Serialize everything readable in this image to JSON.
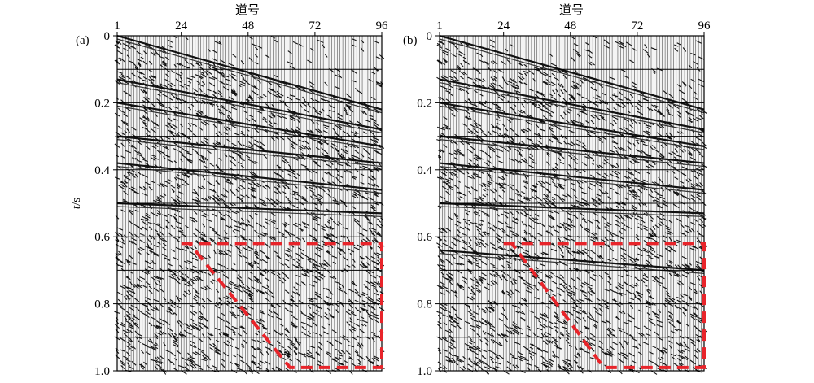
{
  "chart_data": [
    {
      "type": "heatmap",
      "panel_label": "(a)",
      "xlabel": "道号",
      "ylabel": "t/s",
      "x_ticks": [
        1,
        24,
        48,
        72,
        96
      ],
      "y_ticks": [
        0,
        0.2,
        0.4,
        0.6,
        0.8,
        1.0
      ],
      "xlim": [
        1,
        96
      ],
      "ylim": [
        0,
        1.0
      ],
      "grid": true,
      "description_note": "seismic shot gather (wiggle traces)",
      "highlight_region": {
        "color": "#e8242a",
        "style": "dashed",
        "vertices": [
          [
            24,
            0.62
          ],
          [
            96,
            0.62
          ],
          [
            96,
            0.99
          ],
          [
            63,
            0.99
          ],
          [
            27,
            0.62
          ]
        ]
      },
      "events": [
        {
          "t_at_trace1": 0.0,
          "t_at_trace96": 0.22
        },
        {
          "t_at_trace1": 0.13,
          "t_at_trace96": 0.28
        },
        {
          "t_at_trace1": 0.2,
          "t_at_trace96": 0.33
        },
        {
          "t_at_trace1": 0.3,
          "t_at_trace96": 0.38
        },
        {
          "t_at_trace1": 0.38,
          "t_at_trace96": 0.46
        },
        {
          "t_at_trace1": 0.5,
          "t_at_trace96": 0.53
        }
      ]
    },
    {
      "type": "heatmap",
      "panel_label": "(b)",
      "xlabel": "道号",
      "ylabel": "",
      "x_ticks": [
        1,
        24,
        48,
        72,
        96
      ],
      "y_ticks": [
        0,
        0.2,
        0.4,
        0.6,
        0.8,
        1.0
      ],
      "xlim": [
        1,
        96
      ],
      "ylim": [
        0,
        1.0
      ],
      "grid": true,
      "highlight_region": {
        "color": "#e8242a",
        "style": "dashed",
        "vertices": [
          [
            24,
            0.62
          ],
          [
            96,
            0.62
          ],
          [
            96,
            0.99
          ],
          [
            60,
            0.99
          ],
          [
            27,
            0.62
          ]
        ]
      },
      "events": [
        {
          "t_at_trace1": 0.0,
          "t_at_trace96": 0.22
        },
        {
          "t_at_trace1": 0.13,
          "t_at_trace96": 0.28
        },
        {
          "t_at_trace1": 0.2,
          "t_at_trace96": 0.33
        },
        {
          "t_at_trace1": 0.3,
          "t_at_trace96": 0.38
        },
        {
          "t_at_trace1": 0.38,
          "t_at_trace96": 0.46
        },
        {
          "t_at_trace1": 0.5,
          "t_at_trace96": 0.53
        },
        {
          "t_at_trace1": 0.64,
          "t_at_trace96": 0.7
        }
      ]
    }
  ]
}
